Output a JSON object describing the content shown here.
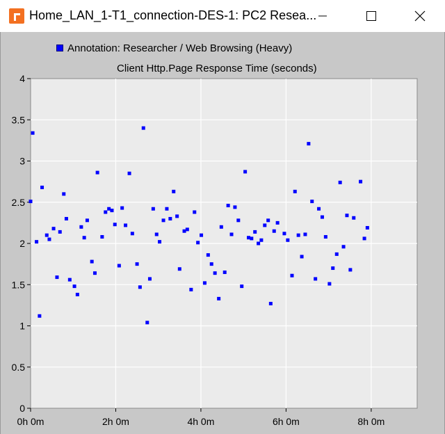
{
  "window": {
    "title": "Home_LAN_1-T1_connection-DES-1: PC2 Resea..."
  },
  "colors": {
    "accent": "#f37021",
    "series": "#0000ff",
    "plot_background": "#ebebeb",
    "frame_background": "#c8c8c8"
  },
  "icons": {
    "app": "opnet-app-icon",
    "minimize": "minimize-icon",
    "maximize": "maximize-icon",
    "close": "close-icon"
  },
  "chart_data": {
    "type": "scatter",
    "title": "Client Http.Page Response Time (seconds)",
    "xlabel": "",
    "ylabel": "",
    "xlim": [
      0,
      9.08
    ],
    "ylim": [
      0,
      4
    ],
    "x_ticks": [
      0,
      2,
      4,
      6,
      8
    ],
    "x_tick_labels": [
      "0h 0m",
      "2h 0m",
      "4h 0m",
      "6h 0m",
      "8h 0m"
    ],
    "y_ticks": [
      0,
      0.5,
      1,
      1.5,
      2,
      2.5,
      3,
      3.5,
      4
    ],
    "y_tick_labels": [
      "0",
      "0.5",
      "1",
      "1.5",
      "2",
      "2.5",
      "3",
      "3.5",
      "4"
    ],
    "grid": true,
    "legend_position": "top-left",
    "series": [
      {
        "name": "Annotation: Researcher / Web Browsing (Heavy)",
        "points": [
          [
            0.0,
            2.51
          ],
          [
            0.05,
            3.34
          ],
          [
            0.14,
            2.02
          ],
          [
            0.21,
            1.12
          ],
          [
            0.27,
            2.68
          ],
          [
            0.38,
            2.1
          ],
          [
            0.44,
            2.05
          ],
          [
            0.54,
            2.18
          ],
          [
            0.62,
            1.59
          ],
          [
            0.69,
            2.14
          ],
          [
            0.78,
            2.6
          ],
          [
            0.84,
            2.3
          ],
          [
            0.92,
            1.56
          ],
          [
            1.03,
            1.48
          ],
          [
            1.1,
            1.38
          ],
          [
            1.19,
            2.2
          ],
          [
            1.26,
            2.07
          ],
          [
            1.33,
            2.28
          ],
          [
            1.44,
            1.78
          ],
          [
            1.51,
            1.64
          ],
          [
            1.57,
            2.86
          ],
          [
            1.68,
            2.08
          ],
          [
            1.76,
            2.38
          ],
          [
            1.84,
            2.42
          ],
          [
            1.91,
            2.4
          ],
          [
            1.98,
            2.23
          ],
          [
            2.08,
            1.73
          ],
          [
            2.15,
            2.43
          ],
          [
            2.23,
            2.22
          ],
          [
            2.32,
            2.85
          ],
          [
            2.39,
            2.12
          ],
          [
            2.5,
            1.75
          ],
          [
            2.57,
            1.47
          ],
          [
            2.65,
            3.4
          ],
          [
            2.74,
            1.04
          ],
          [
            2.8,
            1.57
          ],
          [
            2.88,
            2.42
          ],
          [
            2.96,
            2.11
          ],
          [
            3.03,
            2.02
          ],
          [
            3.12,
            2.28
          ],
          [
            3.2,
            2.42
          ],
          [
            3.28,
            2.3
          ],
          [
            3.36,
            2.63
          ],
          [
            3.44,
            2.33
          ],
          [
            3.5,
            1.69
          ],
          [
            3.61,
            2.15
          ],
          [
            3.68,
            2.17
          ],
          [
            3.77,
            1.44
          ],
          [
            3.85,
            2.38
          ],
          [
            3.93,
            2.01
          ],
          [
            4.01,
            2.1
          ],
          [
            4.09,
            1.52
          ],
          [
            4.17,
            1.86
          ],
          [
            4.25,
            1.75
          ],
          [
            4.33,
            1.64
          ],
          [
            4.42,
            1.33
          ],
          [
            4.48,
            2.2
          ],
          [
            4.56,
            1.65
          ],
          [
            4.64,
            2.46
          ],
          [
            4.72,
            2.11
          ],
          [
            4.8,
            2.44
          ],
          [
            4.88,
            2.28
          ],
          [
            4.96,
            1.48
          ],
          [
            5.04,
            2.87
          ],
          [
            5.12,
            2.07
          ],
          [
            5.19,
            2.06
          ],
          [
            5.27,
            2.14
          ],
          [
            5.35,
            2.0
          ],
          [
            5.42,
            2.04
          ],
          [
            5.5,
            2.22
          ],
          [
            5.58,
            2.28
          ],
          [
            5.64,
            1.27
          ],
          [
            5.72,
            2.15
          ],
          [
            5.8,
            2.25
          ],
          [
            5.96,
            2.12
          ],
          [
            6.04,
            2.04
          ],
          [
            6.14,
            1.61
          ],
          [
            6.21,
            2.63
          ],
          [
            6.29,
            2.1
          ],
          [
            6.37,
            1.84
          ],
          [
            6.45,
            2.11
          ],
          [
            6.53,
            3.21
          ],
          [
            6.61,
            2.51
          ],
          [
            6.69,
            1.57
          ],
          [
            6.77,
            2.42
          ],
          [
            6.85,
            2.32
          ],
          [
            6.93,
            2.08
          ],
          [
            7.02,
            1.51
          ],
          [
            7.1,
            1.7
          ],
          [
            7.19,
            1.87
          ],
          [
            7.27,
            2.74
          ],
          [
            7.35,
            1.96
          ],
          [
            7.43,
            2.34
          ],
          [
            7.51,
            1.68
          ],
          [
            7.59,
            2.31
          ],
          [
            7.75,
            2.75
          ],
          [
            7.84,
            2.06
          ],
          [
            7.91,
            2.19
          ]
        ]
      }
    ]
  }
}
